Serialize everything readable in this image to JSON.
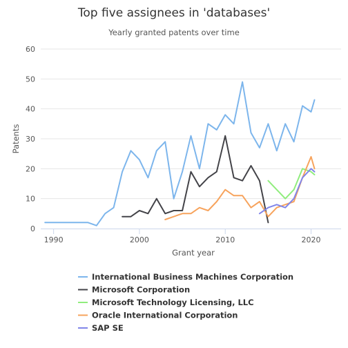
{
  "chart_data": {
    "type": "line",
    "title": "Top five assignees in 'databases'",
    "subtitle": "Yearly granted patents over time",
    "xlabel": "Grant year",
    "ylabel": "Patents",
    "xlim": [
      1988.5,
      2023.5
    ],
    "ylim": [
      0,
      60
    ],
    "x_ticks": [
      1990,
      2000,
      2010,
      2020
    ],
    "y_ticks": [
      0,
      10,
      20,
      30,
      40,
      50,
      60
    ],
    "grid": "horizontal",
    "legend_position": "bottom",
    "series": [
      {
        "name": "International Business Machines Corporation",
        "color": "#7cb5ec",
        "points": [
          [
            1989,
            2
          ],
          [
            1990,
            2
          ],
          [
            1991,
            2
          ],
          [
            1992,
            2
          ],
          [
            1993,
            2
          ],
          [
            1994,
            2
          ],
          [
            1995,
            1
          ],
          [
            1996,
            5
          ],
          [
            1997,
            7
          ],
          [
            1998,
            19
          ],
          [
            1999,
            26
          ],
          [
            2000,
            23
          ],
          [
            2001,
            17
          ],
          [
            2002,
            26
          ],
          [
            2003,
            29
          ],
          [
            2004,
            10
          ],
          [
            2005,
            19
          ],
          [
            2006,
            31
          ],
          [
            2007,
            20
          ],
          [
            2008,
            35
          ],
          [
            2009,
            33
          ],
          [
            2010,
            38
          ],
          [
            2011,
            35
          ],
          [
            2012,
            49
          ],
          [
            2013,
            32
          ],
          [
            2014,
            27
          ],
          [
            2015,
            35
          ],
          [
            2016,
            26
          ],
          [
            2017,
            35
          ],
          [
            2018,
            29
          ],
          [
            2019,
            41
          ],
          [
            2020,
            39
          ],
          [
            2020.4,
            43
          ]
        ]
      },
      {
        "name": "Microsoft Corporation",
        "color": "#434348",
        "points": [
          [
            1998,
            4
          ],
          [
            1999,
            4
          ],
          [
            2000,
            6
          ],
          [
            2001,
            5
          ],
          [
            2002,
            10
          ],
          [
            2003,
            5
          ],
          [
            2004,
            6
          ],
          [
            2005,
            6
          ],
          [
            2006,
            19
          ],
          [
            2007,
            14
          ],
          [
            2008,
            17
          ],
          [
            2009,
            19
          ],
          [
            2010,
            31
          ],
          [
            2011,
            17
          ],
          [
            2012,
            16
          ],
          [
            2013,
            21
          ],
          [
            2014,
            16
          ],
          [
            2015,
            2
          ]
        ]
      },
      {
        "name": "Microsoft Technology Licensing, LLC",
        "color": "#90ed7d",
        "points": [
          [
            2015,
            16
          ],
          [
            2016,
            13
          ],
          [
            2017,
            10
          ],
          [
            2018,
            13
          ],
          [
            2019,
            20
          ],
          [
            2020,
            19
          ],
          [
            2020.4,
            18
          ]
        ]
      },
      {
        "name": "Oracle International Corporation",
        "color": "#f7a35c",
        "points": [
          [
            2003,
            3
          ],
          [
            2004,
            4
          ],
          [
            2005,
            5
          ],
          [
            2006,
            5
          ],
          [
            2007,
            7
          ],
          [
            2008,
            6
          ],
          [
            2009,
            9
          ],
          [
            2010,
            13
          ],
          [
            2011,
            11
          ],
          [
            2012,
            11
          ],
          [
            2013,
            7
          ],
          [
            2014,
            9
          ],
          [
            2015,
            4
          ],
          [
            2016,
            7
          ],
          [
            2017,
            8
          ],
          [
            2018,
            9
          ],
          [
            2019,
            17
          ],
          [
            2020,
            24
          ],
          [
            2020.4,
            20
          ]
        ]
      },
      {
        "name": "SAP SE",
        "color": "#8085e9",
        "points": [
          [
            2014,
            5
          ],
          [
            2015,
            7
          ],
          [
            2016,
            8
          ],
          [
            2017,
            7
          ],
          [
            2018,
            10
          ],
          [
            2019,
            17
          ],
          [
            2020,
            20
          ],
          [
            2020.4,
            19
          ]
        ]
      }
    ]
  }
}
